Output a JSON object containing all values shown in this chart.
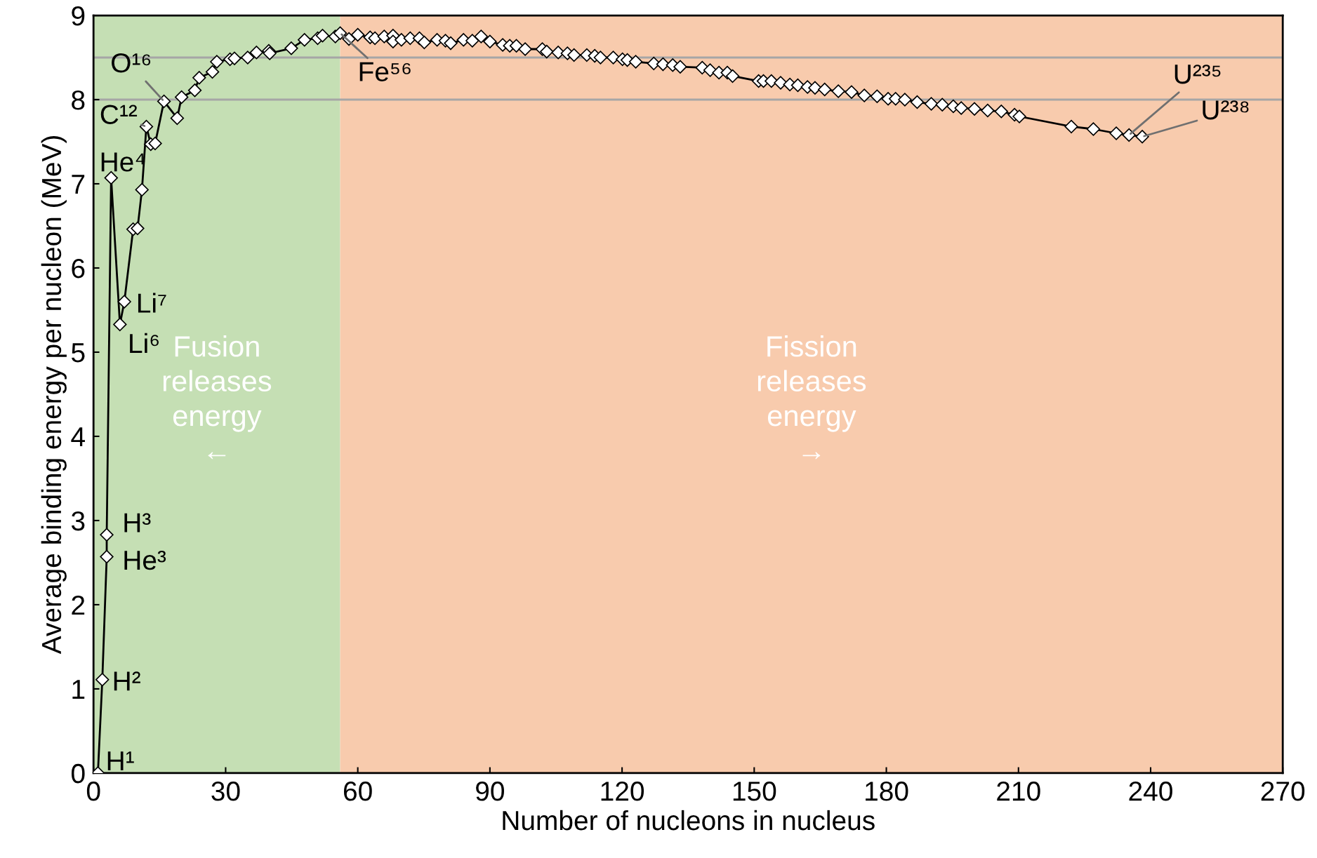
{
  "chart_data": {
    "type": "line",
    "xlabel": "Number of nucleons in nucleus",
    "ylabel": "Average binding energy per nucleon (MeV)",
    "xlim": [
      0,
      270
    ],
    "xticks": [
      0,
      30,
      60,
      90,
      120,
      150,
      180,
      210,
      240,
      270
    ],
    "ylim": [
      0,
      9
    ],
    "yticks": [
      0,
      1,
      2,
      3,
      4,
      5,
      6,
      7,
      8,
      9
    ],
    "grid": false,
    "marker": "diamond",
    "line_style": "solid",
    "series": [
      {
        "color": "#000000",
        "x": [
          1,
          2,
          3,
          3,
          4,
          6,
          7,
          9,
          10,
          11,
          12,
          13,
          14,
          16,
          19,
          20,
          23,
          24,
          27,
          28,
          31,
          32,
          35,
          37,
          39.8,
          40,
          44.9,
          47.9,
          50.9,
          52,
          54.9,
          56,
          58,
          60,
          62.8,
          63.9,
          66,
          68,
          68,
          69.9,
          71.9,
          74,
          75.1,
          78,
          79.9,
          81.1,
          84,
          86,
          88,
          90,
          92.9,
          94.5,
          96,
          98,
          101.9,
          102.9,
          105.5,
          107.6,
          109.1,
          112,
          113.8,
          115.1,
          118,
          120.1,
          121.2,
          123.1,
          127.2,
          129.3,
          131.5,
          133.2,
          138.2,
          140,
          142,
          143.9,
          145.1,
          151,
          152.1,
          153.9,
          156,
          158.1,
          159.9,
          162.1,
          163.8,
          166,
          169.1,
          172.1,
          175,
          177.9,
          180.4,
          182.1,
          184.2,
          187,
          190.2,
          192.7,
          195.2,
          197,
          200,
          203,
          206.1,
          209.1,
          210.2,
          222,
          227,
          232.2,
          235.1,
          238.1
        ],
        "values": [
          0,
          1.11,
          2.57,
          2.83,
          7.07,
          5.33,
          5.6,
          6.46,
          6.47,
          6.93,
          7.68,
          7.47,
          7.48,
          7.98,
          7.78,
          8.03,
          8.11,
          8.26,
          8.33,
          8.45,
          8.48,
          8.49,
          8.5,
          8.56,
          8.58,
          8.55,
          8.61,
          8.71,
          8.73,
          8.76,
          8.75,
          8.79,
          8.72,
          8.77,
          8.74,
          8.73,
          8.75,
          8.76,
          8.69,
          8.71,
          8.73,
          8.73,
          8.68,
          8.71,
          8.7,
          8.67,
          8.71,
          8.7,
          8.75,
          8.69,
          8.65,
          8.64,
          8.64,
          8.6,
          8.6,
          8.57,
          8.56,
          8.55,
          8.53,
          8.53,
          8.52,
          8.5,
          8.5,
          8.48,
          8.47,
          8.45,
          8.43,
          8.42,
          8.41,
          8.39,
          8.38,
          8.35,
          8.32,
          8.32,
          8.28,
          8.22,
          8.22,
          8.22,
          8.2,
          8.18,
          8.17,
          8.15,
          8.14,
          8.12,
          8.1,
          8.09,
          8.05,
          8.04,
          8.01,
          8.01,
          8.0,
          7.97,
          7.95,
          7.94,
          7.92,
          7.9,
          7.89,
          7.87,
          7.86,
          7.82,
          7.8,
          7.68,
          7.65,
          7.6,
          7.58,
          7.56
        ]
      }
    ],
    "bands": [
      {
        "axis": "x",
        "from": 0,
        "to": 56,
        "label": "Fusion\nreleases\nenergy\n←",
        "color": "#c5dfb4"
      },
      {
        "axis": "x",
        "from": 56,
        "to": 270,
        "label": "Fission\nreleases\nenergy\n→",
        "color": "#f8cbad"
      }
    ],
    "ref_lines": [
      {
        "axis": "y",
        "value": 8,
        "color": "#a6a6a6"
      },
      {
        "axis": "y",
        "value": 8.5,
        "color": "#a6a6a6"
      }
    ],
    "annotations": [
      {
        "text": "H¹",
        "x": 1,
        "y": 0
      },
      {
        "text": "H²",
        "x": 2,
        "y": 1.11
      },
      {
        "text": "He³",
        "x": 3,
        "y": 2.57
      },
      {
        "text": "H³",
        "x": 3,
        "y": 2.83
      },
      {
        "text": "He⁴",
        "x": 4,
        "y": 7.07
      },
      {
        "text": "Li⁶",
        "x": 6,
        "y": 5.33
      },
      {
        "text": "Li⁷",
        "x": 7,
        "y": 5.6
      },
      {
        "text": "C¹²",
        "x": 12,
        "y": 7.68
      },
      {
        "text": "O¹⁶",
        "x": 16,
        "y": 7.98
      },
      {
        "text": "Fe⁵⁶",
        "x": 56,
        "y": 8.79
      },
      {
        "text": "U²³⁵",
        "x": 235.1,
        "y": 7.58
      },
      {
        "text": "U²³⁸",
        "x": 238.1,
        "y": 7.56
      }
    ]
  }
}
